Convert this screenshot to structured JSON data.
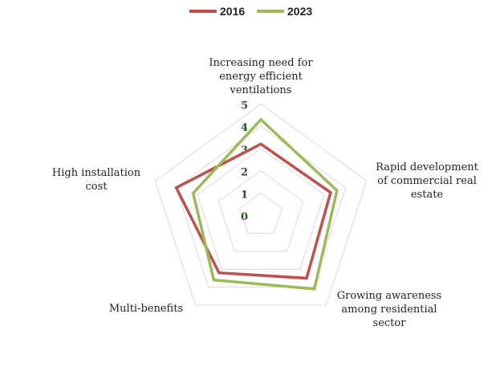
{
  "chart_data": {
    "type": "radar",
    "title": "",
    "categories": [
      [
        "Increasing need for",
        "energy efficient",
        "ventilations"
      ],
      [
        "Rapid development",
        "of commercial real",
        "estate"
      ],
      [
        "Growing awareness",
        "among residential",
        "sector"
      ],
      [
        "Multi-benefits"
      ],
      [
        "High installation",
        "cost"
      ]
    ],
    "ticks": [
      "0",
      "1",
      "2",
      "3",
      "4",
      "5"
    ],
    "range": [
      0,
      5
    ],
    "legend_position": "top",
    "series": [
      {
        "name": "2016",
        "color": "#c0504d",
        "values": [
          3.2,
          3.3,
          3.5,
          3.2,
          4.0
        ]
      },
      {
        "name": "2023",
        "color": "#9bbb59",
        "values": [
          4.3,
          3.6,
          4.1,
          3.6,
          3.2
        ]
      }
    ]
  }
}
